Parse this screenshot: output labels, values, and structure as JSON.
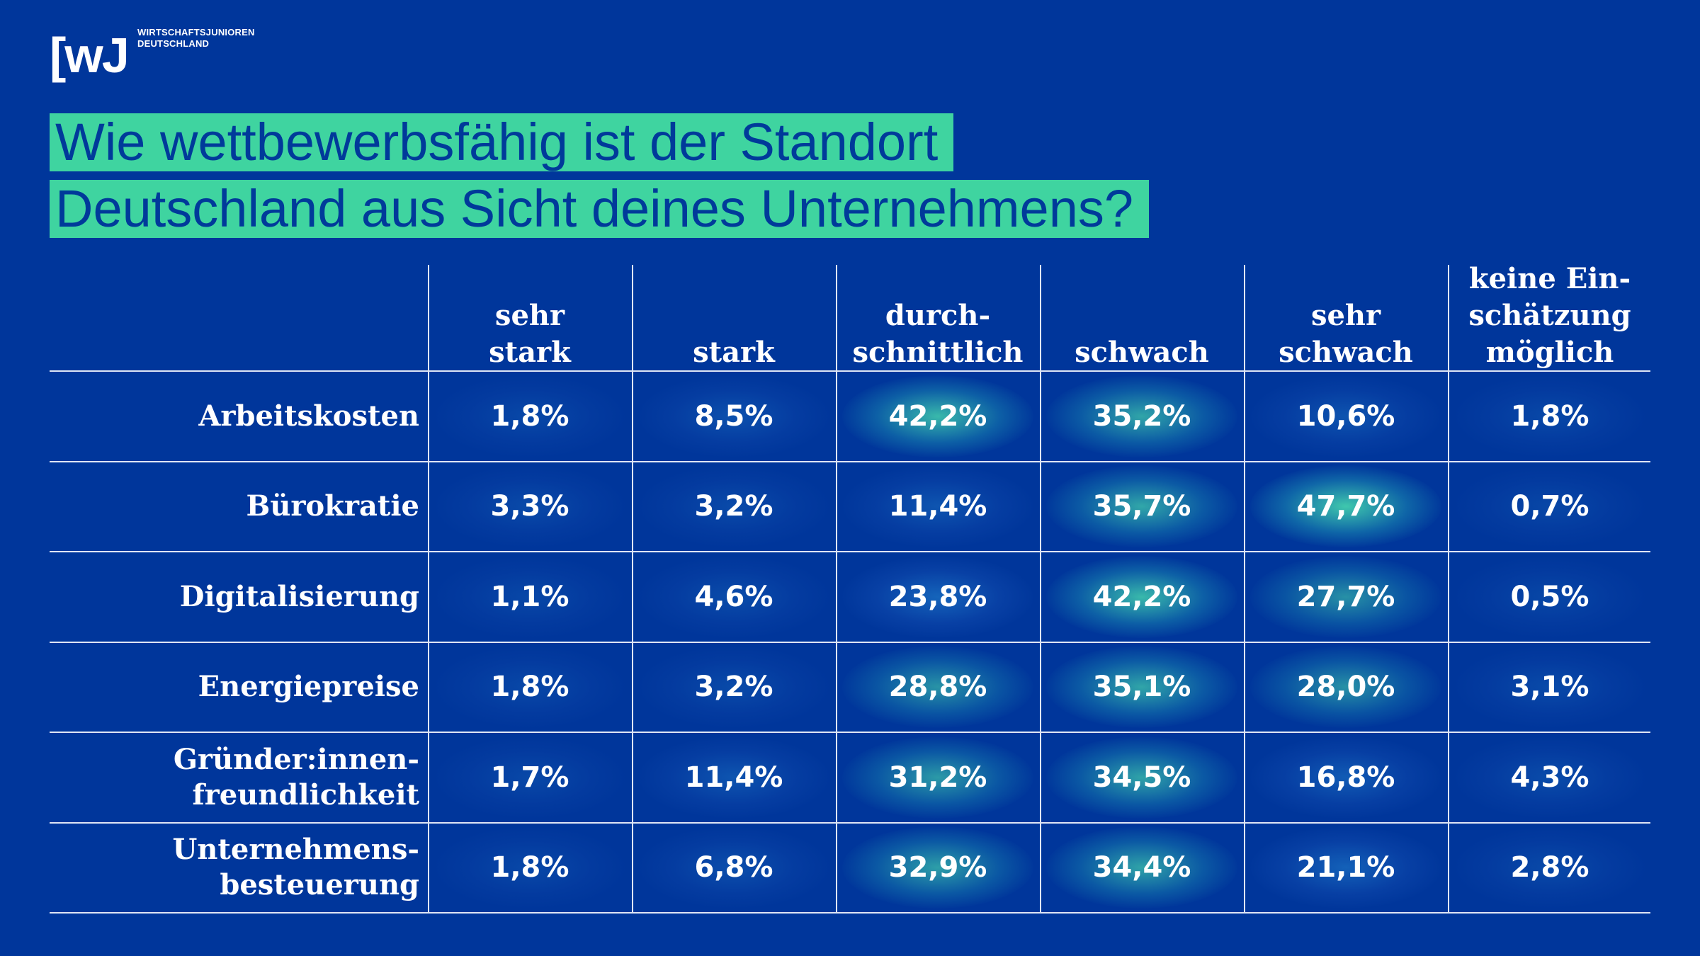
{
  "logo": {
    "mark": "[wJ",
    "line1": "WIRTSCHAFTSJUNIOREN",
    "line2": "DEUTSCHLAND"
  },
  "title": {
    "line1": "Wie wettbewerbsfähig ist der Standort",
    "line2": "Deutschland aus Sicht deines Unternehmens?"
  },
  "colors": {
    "background": "#00369b",
    "accent": "#3fd4a0",
    "title_text": "#003a9a"
  },
  "chart_data": {
    "type": "table",
    "title": "Wie wettbewerbsfähig ist der Standort Deutschland aus Sicht deines Unternehmens?",
    "columns": [
      [
        "sehr",
        "stark"
      ],
      [
        "stark"
      ],
      [
        "durch-",
        "schnittlich"
      ],
      [
        "schwach"
      ],
      [
        "sehr",
        "schwach"
      ],
      [
        "keine Ein-",
        "schätzung",
        "möglich"
      ]
    ],
    "rows": [
      {
        "label": [
          "Arbeitskosten"
        ],
        "values": [
          1.8,
          8.5,
          42.2,
          35.2,
          10.6,
          1.8
        ]
      },
      {
        "label": [
          "Bürokratie"
        ],
        "values": [
          3.3,
          3.2,
          11.4,
          35.7,
          47.7,
          0.7
        ]
      },
      {
        "label": [
          "Digitalisierung"
        ],
        "values": [
          1.1,
          4.6,
          23.8,
          42.2,
          27.7,
          0.5
        ]
      },
      {
        "label": [
          "Energiepreise"
        ],
        "values": [
          1.8,
          3.2,
          28.8,
          35.1,
          28.0,
          3.1
        ]
      },
      {
        "label": [
          "Gründer:innen-",
          "freundlichkeit"
        ],
        "values": [
          1.7,
          11.4,
          31.2,
          34.5,
          16.8,
          4.3
        ]
      },
      {
        "label": [
          "Unternehmens-",
          "besteuerung"
        ],
        "values": [
          1.8,
          6.8,
          32.9,
          34.4,
          21.1,
          2.8
        ]
      }
    ],
    "value_format": {
      "decimals": 1,
      "decimal_separator": ",",
      "suffix": "%"
    }
  }
}
